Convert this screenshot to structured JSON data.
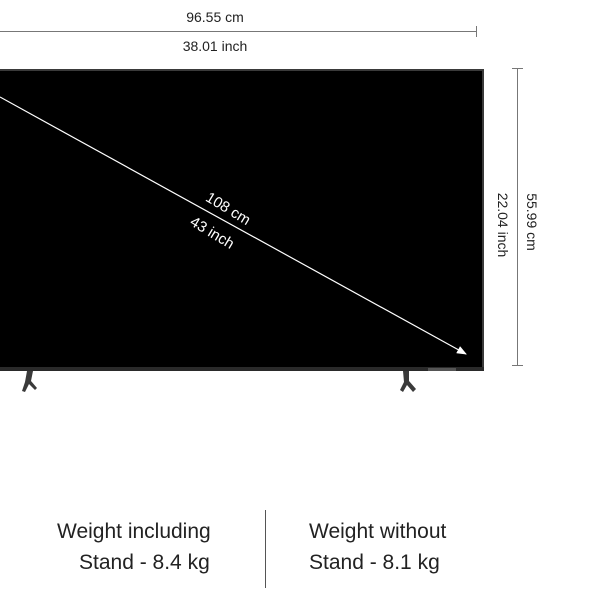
{
  "dimensions": {
    "width_cm": "96.55 cm",
    "width_inch": "38.01 inch",
    "height_cm": "55.99 cm",
    "height_inch": "22.04 inch",
    "diagonal_cm": "108 cm",
    "diagonal_inch": "43 inch"
  },
  "weights": {
    "with_stand_line1": "Weight including",
    "with_stand_line2": "Stand - 8.4 kg",
    "without_stand_line1": "Weight without",
    "without_stand_line2": "Stand - 8.1 kg"
  },
  "colors": {
    "screen": "#000000",
    "dimension_line": "#777777",
    "diagonal_arrow": "#ffffff"
  }
}
